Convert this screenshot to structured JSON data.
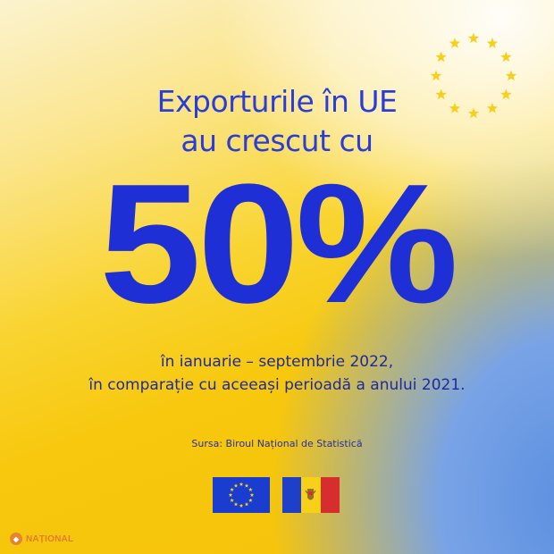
{
  "headline": {
    "line1": "Exporturile în UE",
    "line2": "au crescut cu"
  },
  "big_value": "50%",
  "period": {
    "line1": "în ianuarie – septembrie 2022,",
    "line2": "în comparație cu aceeași perioadă a anului 2021."
  },
  "source": "Sursa: Biroul Național de Statistică",
  "logo": {
    "text": "NAȚIONAL"
  },
  "colors": {
    "accent_blue": "#2a3dd6",
    "eu_blue": "#1a3ccf",
    "star_yellow": "#f7cf1d",
    "md_blue": "#1e3fc7",
    "md_yellow": "#f7d117",
    "md_red": "#d62e2e",
    "logo_orange": "#e37b2d"
  },
  "icons": {
    "eu_star_circle": "eu-stars-icon",
    "eu_flag": "eu-flag-icon",
    "moldova_flag": "moldova-flag-icon",
    "logo": "national-logo-icon"
  }
}
